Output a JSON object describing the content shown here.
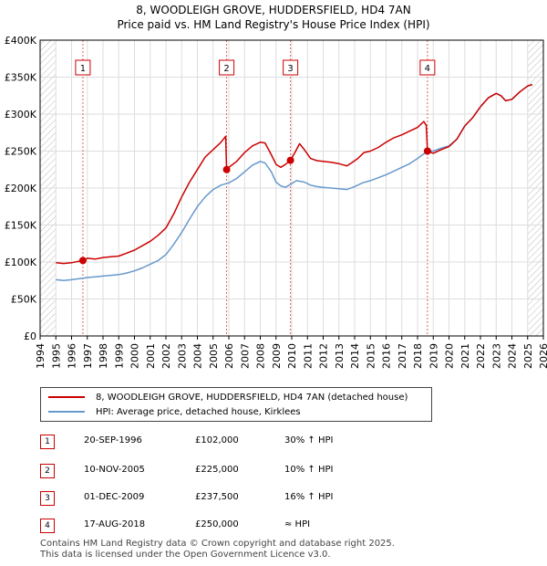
{
  "title_line1": "8, WOODLEIGH GROVE, HUDDERSFIELD, HD4 7AN",
  "title_line2": "Price paid vs. HM Land Registry's House Price Index (HPI)",
  "colors": {
    "property": "#cc0000",
    "hpi": "#6699cc",
    "marker_line": "#e06060",
    "grid": "#dddddd",
    "plot_bg": "#ffffff",
    "hatch": "#bbbbbb"
  },
  "legend": {
    "property_label": "8, WOODLEIGH GROVE, HUDDERSFIELD, HD4 7AN (detached house)",
    "hpi_label": "HPI: Average price, detached house, Kirklees"
  },
  "transactions": [
    {
      "num": "1",
      "date": "20-SEP-1996",
      "price": "£102,000",
      "hpi": "30% ↑ HPI"
    },
    {
      "num": "2",
      "date": "10-NOV-2005",
      "price": "£225,000",
      "hpi": "10% ↑ HPI"
    },
    {
      "num": "3",
      "date": "01-DEC-2009",
      "price": "£237,500",
      "hpi": "16% ↑ HPI"
    },
    {
      "num": "4",
      "date": "17-AUG-2018",
      "price": "£250,000",
      "hpi": "≈ HPI"
    }
  ],
  "footer_line1": "Contains HM Land Registry data © Crown copyright and database right 2025.",
  "footer_line2": "This data is licensed under the Open Government Licence v3.0.",
  "chart_data": {
    "type": "line",
    "title": "8, WOODLEIGH GROVE, HUDDERSFIELD, HD4 7AN",
    "subtitle": "Price paid vs. HM Land Registry's House Price Index (HPI)",
    "xlabel": "",
    "ylabel": "",
    "xlim": [
      1994,
      2026
    ],
    "ylim": [
      0,
      400000
    ],
    "y_ticks": [
      0,
      50000,
      100000,
      150000,
      200000,
      250000,
      300000,
      350000,
      400000
    ],
    "y_tick_labels": [
      "£0",
      "£50K",
      "£100K",
      "£150K",
      "£200K",
      "£250K",
      "£300K",
      "£350K",
      "£400K"
    ],
    "x_ticks": [
      1994,
      1995,
      1996,
      1997,
      1998,
      1999,
      2000,
      2001,
      2002,
      2003,
      2004,
      2005,
      2006,
      2007,
      2008,
      2009,
      2010,
      2011,
      2012,
      2013,
      2014,
      2015,
      2016,
      2017,
      2018,
      2019,
      2020,
      2021,
      2022,
      2023,
      2024,
      2025,
      2026
    ],
    "x_tick_labels": [
      "1994",
      "1995",
      "1996",
      "1997",
      "1998",
      "1999",
      "2000",
      "2001",
      "2002",
      "2003",
      "2004",
      "2005",
      "2006",
      "2007",
      "2008",
      "2009",
      "2010",
      "2011",
      "2012",
      "2013",
      "2014",
      "2015",
      "2016",
      "2017",
      "2018",
      "2019",
      "2020",
      "2021",
      "2022",
      "2023",
      "2024",
      "2025",
      "2026"
    ],
    "grid": true,
    "hatched_ranges": [
      [
        1994,
        1995.0
      ],
      [
        2025.0,
        2026
      ]
    ],
    "series": [
      {
        "name": "8, WOODLEIGH GROVE, HUDDERSFIELD, HD4 7AN (detached house)",
        "points": [
          [
            1995.0,
            99000
          ],
          [
            1995.5,
            98000
          ],
          [
            1996.0,
            99000
          ],
          [
            1996.72,
            102000
          ],
          [
            1997.0,
            105000
          ],
          [
            1997.5,
            104000
          ],
          [
            1998.0,
            106000
          ],
          [
            1998.5,
            107000
          ],
          [
            1999.0,
            108000
          ],
          [
            1999.5,
            112000
          ],
          [
            2000.0,
            116000
          ],
          [
            2000.5,
            122000
          ],
          [
            2001.0,
            128000
          ],
          [
            2001.5,
            136000
          ],
          [
            2002.0,
            146000
          ],
          [
            2002.5,
            165000
          ],
          [
            2003.0,
            188000
          ],
          [
            2003.5,
            208000
          ],
          [
            2004.0,
            225000
          ],
          [
            2004.5,
            242000
          ],
          [
            2005.0,
            252000
          ],
          [
            2005.5,
            262000
          ],
          [
            2005.8,
            270000
          ],
          [
            2005.86,
            225000
          ],
          [
            2006.0,
            228000
          ],
          [
            2006.5,
            236000
          ],
          [
            2007.0,
            248000
          ],
          [
            2007.5,
            257000
          ],
          [
            2008.0,
            262000
          ],
          [
            2008.3,
            261000
          ],
          [
            2008.7,
            245000
          ],
          [
            2009.0,
            232000
          ],
          [
            2009.3,
            228000
          ],
          [
            2009.6,
            232000
          ],
          [
            2009.92,
            237500
          ],
          [
            2010.2,
            248000
          ],
          [
            2010.5,
            260000
          ],
          [
            2010.8,
            252000
          ],
          [
            2011.2,
            240000
          ],
          [
            2011.6,
            237000
          ],
          [
            2012.0,
            236000
          ],
          [
            2012.5,
            235000
          ],
          [
            2013.0,
            233000
          ],
          [
            2013.5,
            230000
          ],
          [
            2013.8,
            234000
          ],
          [
            2014.2,
            240000
          ],
          [
            2014.6,
            248000
          ],
          [
            2015.0,
            250000
          ],
          [
            2015.5,
            255000
          ],
          [
            2016.0,
            262000
          ],
          [
            2016.5,
            268000
          ],
          [
            2017.0,
            272000
          ],
          [
            2017.5,
            277000
          ],
          [
            2018.0,
            282000
          ],
          [
            2018.4,
            290000
          ],
          [
            2018.55,
            285000
          ],
          [
            2018.63,
            250000
          ],
          [
            2019.0,
            247000
          ],
          [
            2019.5,
            252000
          ],
          [
            2020.0,
            256000
          ],
          [
            2020.5,
            266000
          ],
          [
            2021.0,
            284000
          ],
          [
            2021.5,
            295000
          ],
          [
            2022.0,
            310000
          ],
          [
            2022.5,
            322000
          ],
          [
            2023.0,
            328000
          ],
          [
            2023.3,
            325000
          ],
          [
            2023.6,
            318000
          ],
          [
            2024.0,
            320000
          ],
          [
            2024.5,
            330000
          ],
          [
            2025.0,
            338000
          ],
          [
            2025.3,
            340000
          ]
        ]
      },
      {
        "name": "HPI: Average price, detached house, Kirklees",
        "points": [
          [
            1995.0,
            76000
          ],
          [
            1995.5,
            75000
          ],
          [
            1996.0,
            76000
          ],
          [
            1996.72,
            78000
          ],
          [
            1997.0,
            79000
          ],
          [
            1997.5,
            80000
          ],
          [
            1998.0,
            81000
          ],
          [
            1998.5,
            82000
          ],
          [
            1999.0,
            83000
          ],
          [
            1999.5,
            85000
          ],
          [
            2000.0,
            88000
          ],
          [
            2000.5,
            92000
          ],
          [
            2001.0,
            97000
          ],
          [
            2001.5,
            102000
          ],
          [
            2002.0,
            110000
          ],
          [
            2002.5,
            124000
          ],
          [
            2003.0,
            140000
          ],
          [
            2003.5,
            158000
          ],
          [
            2004.0,
            175000
          ],
          [
            2004.5,
            188000
          ],
          [
            2005.0,
            198000
          ],
          [
            2005.5,
            204000
          ],
          [
            2006.0,
            207000
          ],
          [
            2006.5,
            213000
          ],
          [
            2007.0,
            222000
          ],
          [
            2007.5,
            231000
          ],
          [
            2008.0,
            236000
          ],
          [
            2008.3,
            234000
          ],
          [
            2008.7,
            222000
          ],
          [
            2009.0,
            208000
          ],
          [
            2009.3,
            203000
          ],
          [
            2009.6,
            201000
          ],
          [
            2009.92,
            205000
          ],
          [
            2010.3,
            210000
          ],
          [
            2010.8,
            208000
          ],
          [
            2011.2,
            204000
          ],
          [
            2011.6,
            202000
          ],
          [
            2012.0,
            201000
          ],
          [
            2012.5,
            200000
          ],
          [
            2013.0,
            199000
          ],
          [
            2013.5,
            198000
          ],
          [
            2014.0,
            202000
          ],
          [
            2014.5,
            207000
          ],
          [
            2015.0,
            210000
          ],
          [
            2015.5,
            214000
          ],
          [
            2016.0,
            218000
          ],
          [
            2016.5,
            223000
          ],
          [
            2017.0,
            228000
          ],
          [
            2017.5,
            233000
          ],
          [
            2018.0,
            240000
          ],
          [
            2018.63,
            250000
          ],
          [
            2019.0,
            250000
          ],
          [
            2019.5,
            254000
          ],
          [
            2020.0,
            257000
          ],
          [
            2020.5,
            266000
          ],
          [
            2021.0,
            284000
          ],
          [
            2021.5,
            295000
          ],
          [
            2022.0,
            310000
          ],
          [
            2022.5,
            322000
          ],
          [
            2023.0,
            328000
          ],
          [
            2023.3,
            325000
          ],
          [
            2023.6,
            318000
          ],
          [
            2024.0,
            320000
          ],
          [
            2024.5,
            330000
          ],
          [
            2025.0,
            338000
          ],
          [
            2025.3,
            340000
          ]
        ]
      }
    ],
    "sale_markers": [
      {
        "label": "1",
        "x": 1996.72,
        "y": 102000
      },
      {
        "label": "2",
        "x": 2005.86,
        "y": 225000
      },
      {
        "label": "3",
        "x": 2009.92,
        "y": 237500
      },
      {
        "label": "4",
        "x": 2018.63,
        "y": 250000
      }
    ]
  }
}
